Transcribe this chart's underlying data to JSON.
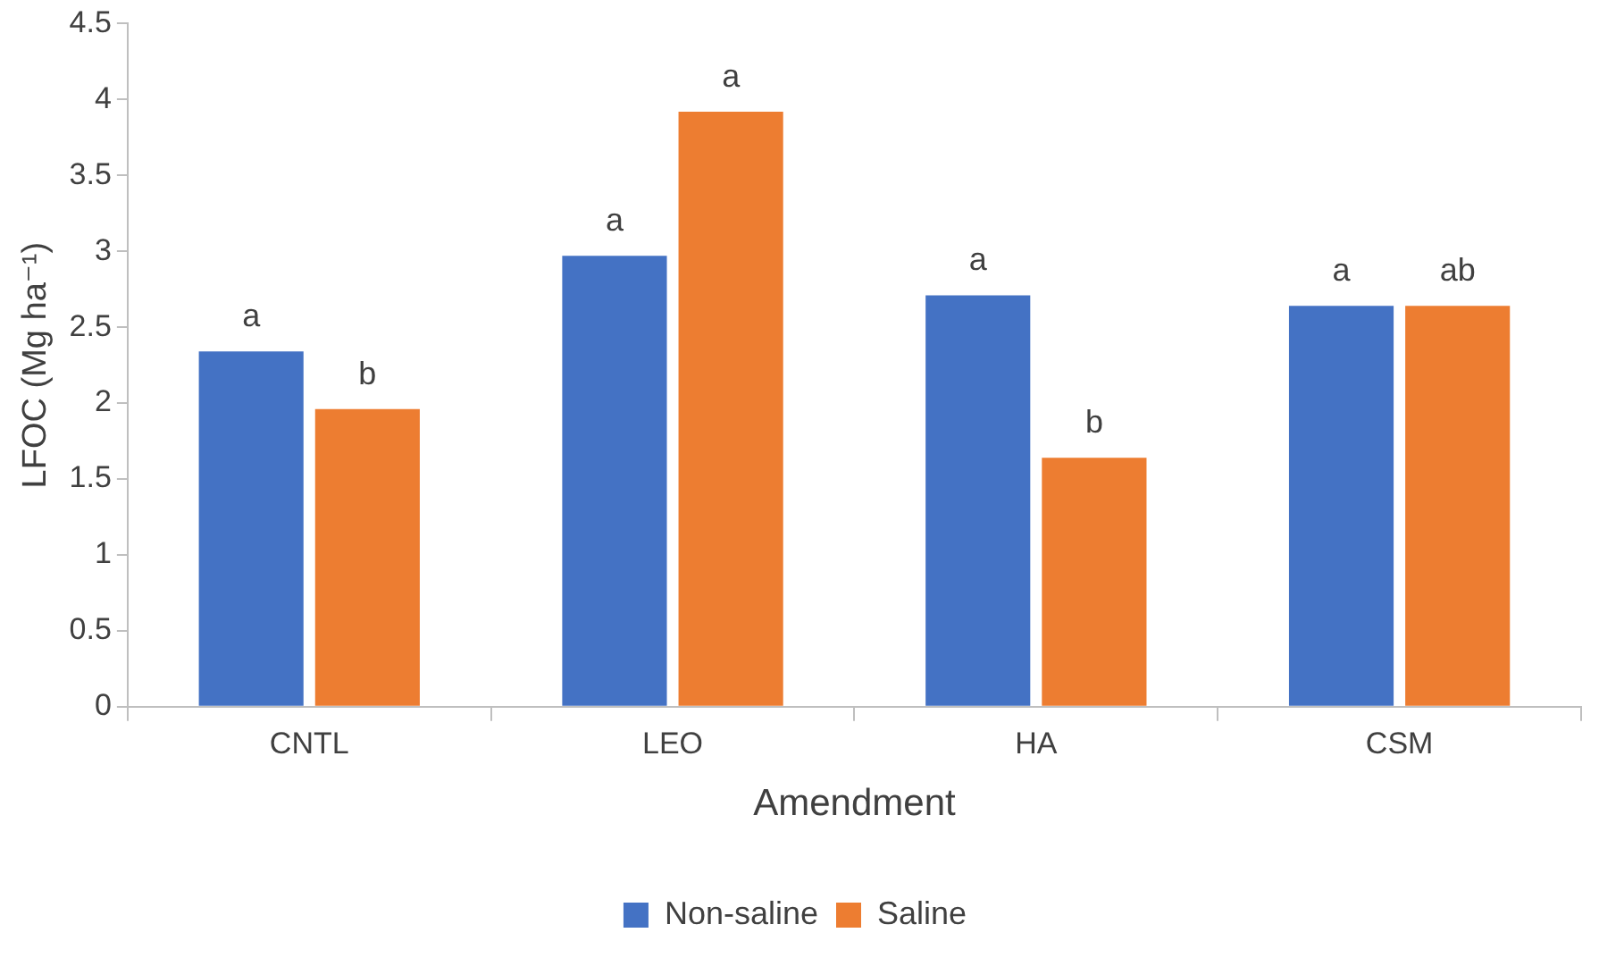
{
  "chart_data": {
    "type": "bar",
    "xlabel": "Amendment",
    "ylabel": "LFOC (Mg ha⁻¹)",
    "categories": [
      "CNTL",
      "LEO",
      "HA",
      "CSM"
    ],
    "series": [
      {
        "name": "Non-saline",
        "color": "#4472c4",
        "values": [
          2.34,
          2.97,
          2.71,
          2.64
        ],
        "value_labels": [
          "a",
          "a",
          "a",
          "a"
        ]
      },
      {
        "name": "Saline",
        "color": "#ed7d31",
        "values": [
          1.96,
          3.92,
          1.64,
          2.64
        ],
        "value_labels": [
          "b",
          "a",
          "b",
          "ab"
        ]
      }
    ],
    "ylim": [
      0,
      4.5
    ],
    "yticks": [
      0,
      0.5,
      1,
      1.5,
      2,
      2.5,
      3,
      3.5,
      4,
      4.5
    ],
    "grid": false,
    "legend": "bottom"
  }
}
